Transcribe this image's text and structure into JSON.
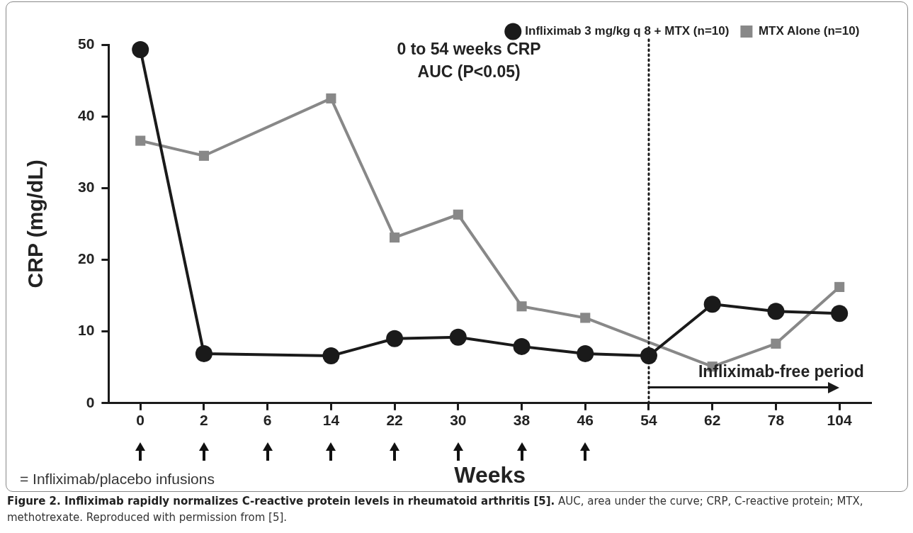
{
  "chart_data": {
    "type": "line",
    "title": "Figure 2. Infliximab rapidly normalizes C-reactive protein levels in rheumatoid arthritis [5].",
    "xlabel": "Weeks",
    "ylabel": "CRP (mg/dL)",
    "categories": [
      "0",
      "2",
      "6",
      "14",
      "22",
      "30",
      "38",
      "46",
      "54",
      "62",
      "78",
      "104"
    ],
    "series": [
      {
        "name": "Infliximab 3 mg/kg q 8 + MTX (n=10)",
        "color": "#1a1a1a",
        "marker": "circle",
        "values": [
          49.3,
          6.9,
          null,
          6.6,
          9.0,
          9.2,
          7.9,
          6.9,
          6.6,
          13.8,
          12.8,
          12.5
        ]
      },
      {
        "name": "MTX Alone (n=10)",
        "color": "#888888",
        "marker": "square",
        "values": [
          36.6,
          34.5,
          null,
          42.5,
          23.1,
          26.3,
          13.5,
          11.9,
          null,
          5.1,
          8.3,
          16.2
        ]
      }
    ],
    "ylim": [
      0,
      50
    ],
    "yticks": [
      0,
      10,
      20,
      30,
      40,
      50
    ],
    "grid": false,
    "legend": "top right",
    "line_style": "solid",
    "ref_lines": [
      {
        "axis": "x",
        "value": "54",
        "line_style": "dotted",
        "color": "#1a1a1a"
      }
    ],
    "annotations": [
      "0 to 54 weeks CRP AUC (P<0.05)",
      "= Infliximab/placebo infusions",
      "Infliximab-free period",
      "AUC, area under the curve; CRP, C-reactive protein; MTX, methotrexate. Reproduced with permission from [5]."
    ]
  }
}
